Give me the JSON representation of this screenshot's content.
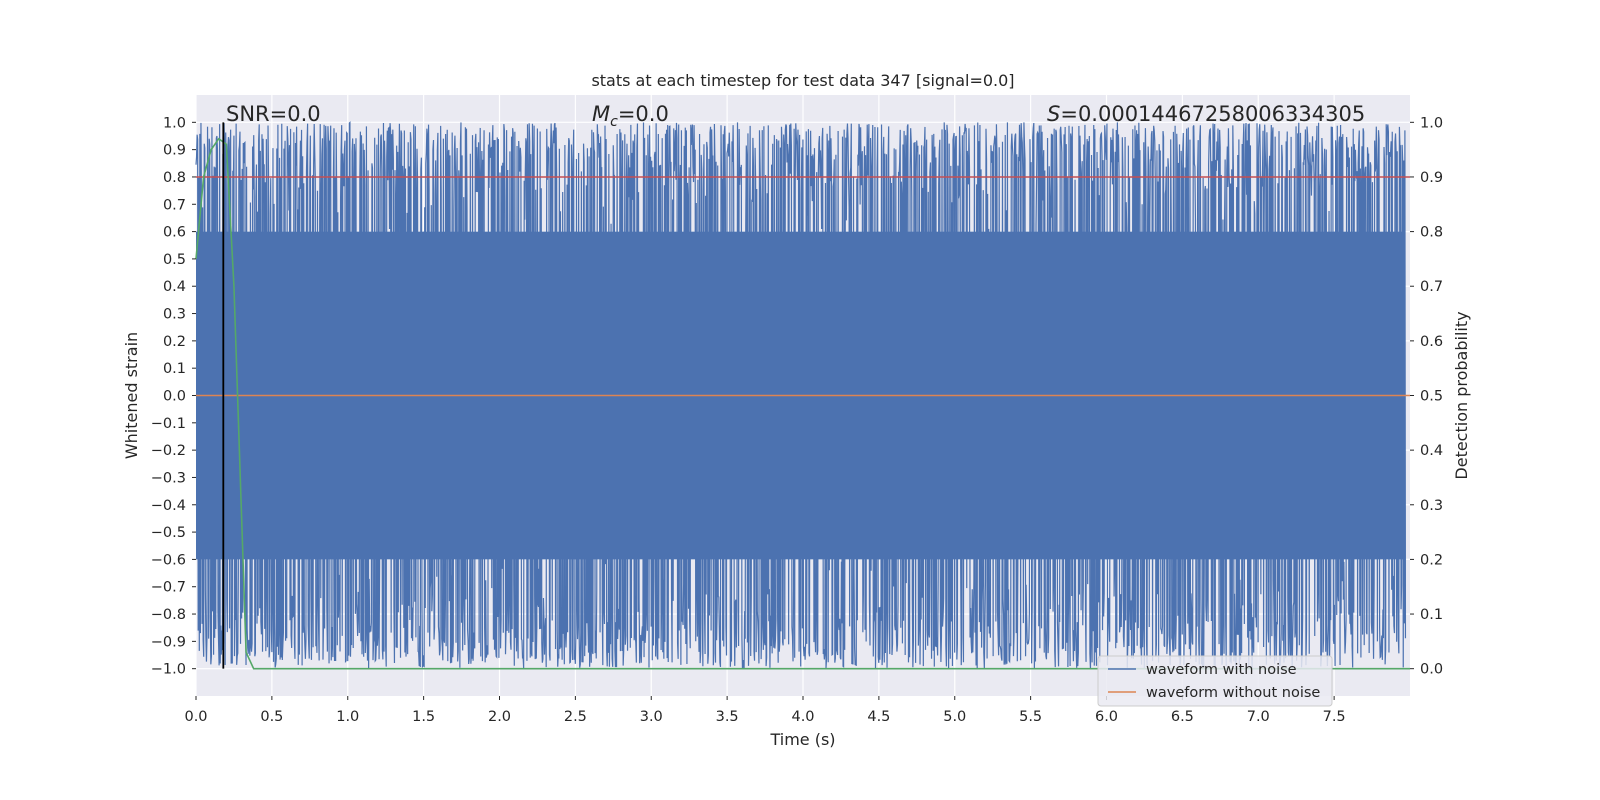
{
  "chart_data": {
    "type": "line",
    "title": "stats at each timestep for test data 347 [signal=0.0]",
    "xlabel": "Time (s)",
    "ylabel": "Whitened strain",
    "ylabel_right": "Detection probability",
    "xlim": [
      0.0,
      8.0
    ],
    "ylim": [
      -1.1,
      1.1
    ],
    "ylim_right": [
      -0.05,
      1.05
    ],
    "x_ticks": [
      0.0,
      0.5,
      1.0,
      1.5,
      2.0,
      2.5,
      3.0,
      3.5,
      4.0,
      4.5,
      5.0,
      5.5,
      6.0,
      6.5,
      7.0,
      7.5
    ],
    "x_tick_labels": [
      "0.0",
      "0.5",
      "1.0",
      "1.5",
      "2.0",
      "2.5",
      "3.0",
      "3.5",
      "4.0",
      "4.5",
      "5.0",
      "5.5",
      "6.0",
      "6.5",
      "7.0",
      "7.5"
    ],
    "y_ticks": [
      1.0,
      0.9,
      0.8,
      0.7,
      0.6,
      0.5,
      0.4,
      0.3,
      0.2,
      0.1,
      0.0,
      -0.1,
      -0.2,
      -0.3,
      -0.4,
      -0.5,
      -0.6,
      -0.7,
      -0.8,
      -0.9,
      -1.0
    ],
    "y_tick_labels": [
      "1.0",
      "0.9",
      "0.8",
      "0.7",
      "0.6",
      "0.5",
      "0.4",
      "0.3",
      "0.2",
      "0.1",
      "0.0",
      "−0.1",
      "−0.2",
      "−0.3",
      "−0.4",
      "−0.5",
      "−0.6",
      "−0.7",
      "−0.8",
      "−0.9",
      "−1.0"
    ],
    "y_ticks_right": [
      1.0,
      0.9,
      0.8,
      0.7,
      0.6,
      0.5,
      0.4,
      0.3,
      0.2,
      0.1,
      0.0
    ],
    "y_tick_labels_right": [
      "1.0",
      "0.9",
      "0.8",
      "0.7",
      "0.6",
      "0.5",
      "0.4",
      "0.3",
      "0.2",
      "0.1",
      "0.0"
    ],
    "grid": true,
    "legend_position": "lower-right",
    "series": [
      {
        "name": "waveform with noise",
        "color": "#4c72b0",
        "axis": "left",
        "description_values": "dense noise spanning -1.0 to 1.0 across 0.0–8.0 s",
        "y_range": [
          -1.0,
          1.0
        ]
      },
      {
        "name": "waveform without noise",
        "color": "#dd8452",
        "axis": "left",
        "x": [
          0.0,
          8.0
        ],
        "y": [
          0.0,
          0.0
        ]
      },
      {
        "axis": "right",
        "color": "#55a868",
        "x": [
          0.0,
          0.05,
          0.1,
          0.15,
          0.2,
          0.25,
          0.33,
          0.38,
          0.45,
          8.0
        ],
        "y": [
          0.75,
          0.9,
          0.95,
          0.97,
          0.96,
          0.7,
          0.03,
          0.0,
          0.0,
          0.0
        ]
      }
    ],
    "threshold_line": {
      "axis": "right",
      "value": 0.9,
      "color": "#c44e52"
    },
    "vertical_line": {
      "x": 0.18,
      "color": "#000000"
    },
    "annotations": {
      "snr": "SNR=0.0",
      "mc_symbol": "M",
      "mc_subscript": "c",
      "mc_value": "=0.0",
      "s_symbol": "S",
      "s_value": "=0.00014467258006334305"
    }
  }
}
